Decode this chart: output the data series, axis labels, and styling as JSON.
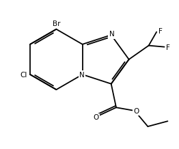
{
  "background_color": "#ffffff",
  "line_color": "#000000",
  "text_color": "#000000",
  "figsize": [
    2.62,
    2.18
  ],
  "dpi": 100,
  "font_size": 7.5,
  "lw": 1.3,
  "atom_labels": {
    "Br": "Br",
    "Cl": "Cl",
    "N": "N",
    "O": "O",
    "F": "F"
  }
}
